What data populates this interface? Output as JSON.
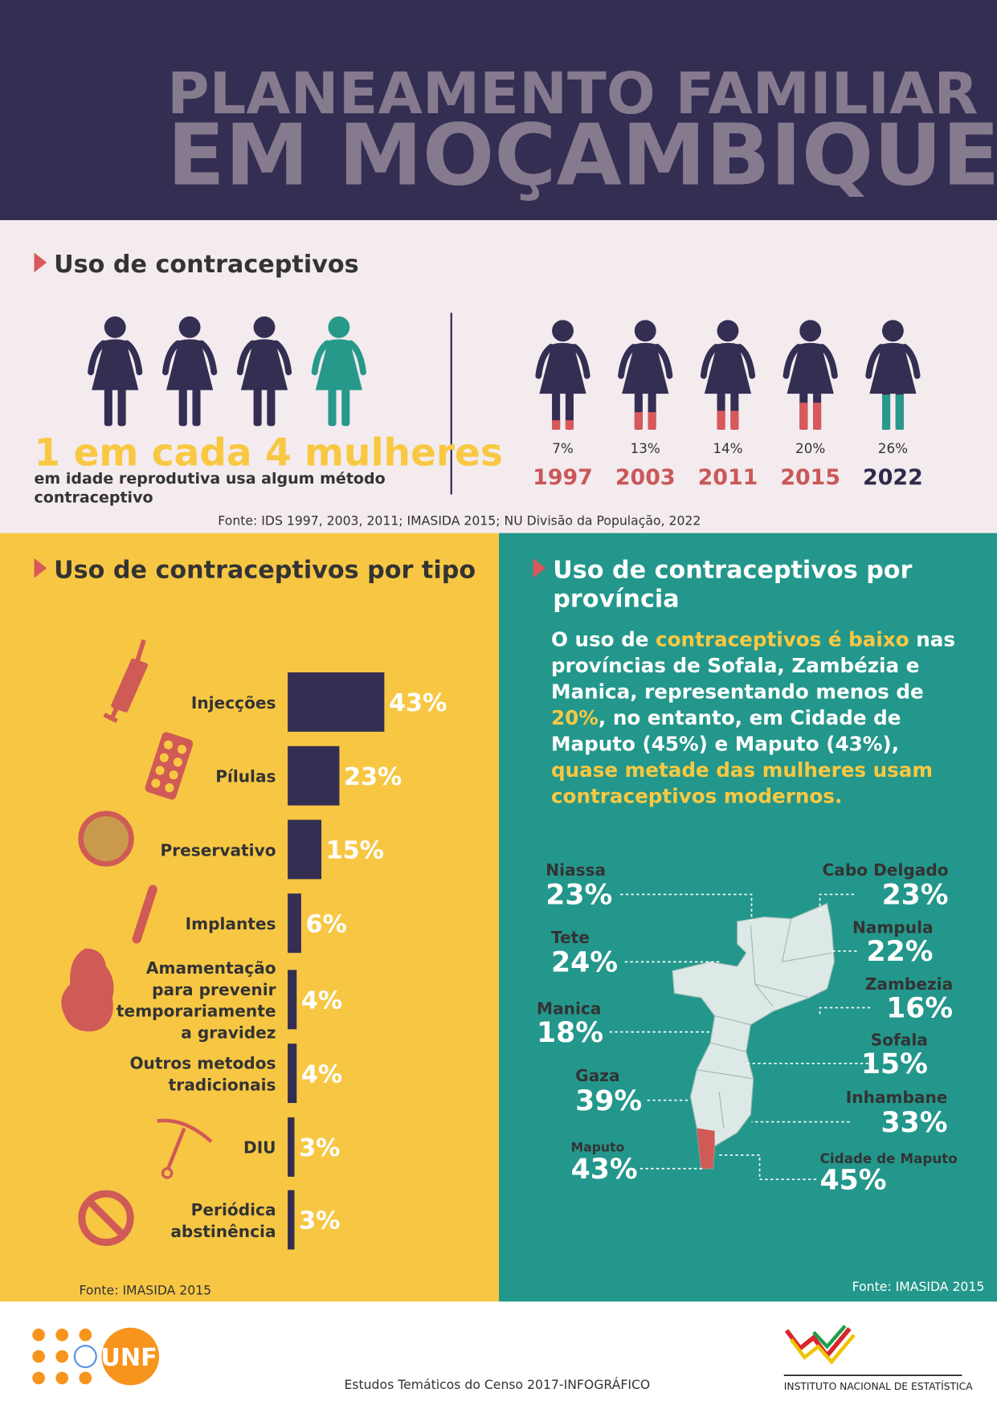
{
  "header": {
    "title_line1": "PLANEAMENTO FAMILIAR",
    "title_line2": "EM MOÇAMBIQUE"
  },
  "contraceptive_use": {
    "heading": "Uso de contraceptivos",
    "ratio_text": "1 em cada 4 mulheres",
    "ratio_caption_line1": "em idade reprodutiva usa algum método",
    "ratio_caption_line2": "contraceptivo",
    "trend": {
      "years": [
        "1997",
        "2003",
        "2011",
        "2015",
        "2022"
      ],
      "values": [
        7,
        13,
        14,
        20,
        26
      ],
      "value_labels": [
        "7%",
        "13%",
        "14%",
        "20%",
        "26%"
      ]
    },
    "source": "Fonte: IDS 1997, 2003, 2011; IMASIDA 2015; NU Divisão da População, 2022"
  },
  "by_type": {
    "heading": "Uso de contraceptivos por tipo",
    "categories": [
      [
        "Injecções"
      ],
      [
        "Pílulas"
      ],
      [
        "Preservativo"
      ],
      [
        "Implantes"
      ],
      [
        "Amamentação",
        "para prevenir",
        "temporariamente",
        "a gravidez"
      ],
      [
        "Outros metodos",
        "tradicionais"
      ],
      [
        "DIU"
      ],
      [
        "Periódica",
        "abstinência"
      ]
    ],
    "values": [
      43,
      23,
      15,
      6,
      4,
      4,
      3,
      3
    ],
    "value_labels": [
      "43%",
      "23%",
      "15%",
      "6%",
      "4%",
      "4%",
      "3%",
      "3%"
    ],
    "source": "Fonte: IMASIDA 2015"
  },
  "by_province": {
    "heading_line1": "Uso de contraceptivos por",
    "heading_line2": "província",
    "paragraph": [
      {
        "text": "O uso de ",
        "highlight": false
      },
      {
        "text": "contraceptivos é baixo",
        "highlight": true
      },
      {
        "text": " nas províncias de Sofala, Zambézia e Manica, representando menos de ",
        "highlight": false
      },
      {
        "text": "20%",
        "highlight": true
      },
      {
        "text": ", no entanto, em Cidade de Maputo (45%) e Maputo (43%), ",
        "highlight": false
      },
      {
        "text": "quase metade das mulheres usam contraceptivos modernos.",
        "highlight": true
      }
    ],
    "provinces": [
      {
        "name": "Niassa",
        "value": "23%"
      },
      {
        "name": "Cabo Delgado",
        "value": "23%"
      },
      {
        "name": "Tete",
        "value": "24%"
      },
      {
        "name": "Nampula",
        "value": "22%"
      },
      {
        "name": "Manica",
        "value": "18%"
      },
      {
        "name": "Zambezia",
        "value": "16%"
      },
      {
        "name": "Sofala",
        "value": "15%"
      },
      {
        "name": "Gaza",
        "value": "39%"
      },
      {
        "name": "Inhambane",
        "value": "33%"
      },
      {
        "name": "Maputo",
        "value": "43%"
      },
      {
        "name": "Cidade de Maputo",
        "value": "45%"
      }
    ],
    "source": "Fonte: IMASIDA 2015"
  },
  "footer": {
    "text": "Estudos Temáticos do Censo 2017-INFOGRÁFICO",
    "unfpa": "UNFPA",
    "ine": "INSTITUTO NACIONAL DE ESTATÍSTICA"
  }
}
